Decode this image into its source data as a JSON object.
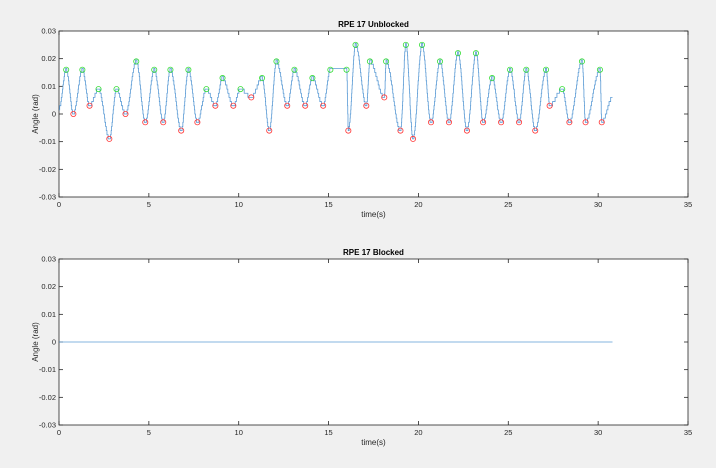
{
  "colors": {
    "line": "#5b9bd5",
    "peak_marker": "#33dd33",
    "trough_marker": "#ff3333",
    "axes": "#262626",
    "figure_bg": "#f0f0f0"
  },
  "chart_data": [
    {
      "type": "line",
      "title": "RPE 17 Unblocked",
      "xlabel": "time(s)",
      "ylabel": "Angle (rad)",
      "xlim": [
        0,
        35
      ],
      "ylim": [
        -0.03,
        0.03
      ],
      "xticks": [
        0,
        5,
        10,
        15,
        20,
        25,
        30,
        35
      ],
      "xtick_labels": [
        "0",
        "5",
        "10",
        "15",
        "20",
        "25",
        "30",
        "35"
      ],
      "yticks": [
        0.03,
        0.02,
        0.01,
        0,
        -0.01,
        -0.02,
        -0.03
      ],
      "ytick_labels": [
        "0.03",
        "0.02",
        "0.01",
        "0",
        "-0.01",
        "-0.02",
        "-0.03"
      ],
      "grid": false,
      "x_end": 30.8,
      "peaks": {
        "x": [
          0.4,
          1.3,
          2.2,
          3.2,
          4.3,
          5.3,
          6.2,
          7.2,
          8.2,
          9.1,
          10.1,
          11.3,
          12.1,
          13.1,
          14.1,
          15.1,
          16.0,
          16.5,
          17.3,
          18.2,
          19.3,
          20.2,
          21.2,
          22.2,
          23.2,
          24.1,
          25.1,
          26.0,
          27.1,
          28.0,
          29.1,
          30.1
        ],
        "y": [
          0.016,
          0.016,
          0.009,
          0.009,
          0.019,
          0.016,
          0.016,
          0.016,
          0.009,
          0.013,
          0.009,
          0.013,
          0.019,
          0.016,
          0.013,
          0.016,
          0.016,
          0.025,
          0.019,
          0.019,
          0.025,
          0.025,
          0.019,
          0.022,
          0.022,
          0.013,
          0.016,
          0.016,
          0.016,
          0.009,
          0.019,
          0.016
        ]
      },
      "troughs": {
        "x": [
          0.8,
          1.7,
          2.8,
          3.7,
          4.8,
          5.8,
          6.8,
          7.7,
          8.7,
          9.7,
          10.7,
          11.7,
          12.7,
          13.7,
          14.7,
          16.1,
          17.1,
          18.1,
          19.0,
          19.7,
          20.7,
          21.7,
          22.7,
          23.6,
          24.6,
          25.6,
          26.5,
          27.3,
          28.4,
          29.3,
          30.2
        ],
        "y": [
          0.0,
          0.003,
          -0.009,
          0.0,
          -0.003,
          -0.003,
          -0.006,
          -0.003,
          0.003,
          0.003,
          0.006,
          -0.006,
          0.003,
          0.003,
          0.003,
          -0.006,
          0.003,
          0.006,
          -0.006,
          -0.009,
          -0.003,
          -0.003,
          -0.006,
          -0.003,
          -0.003,
          -0.003,
          -0.006,
          0.003,
          -0.003,
          -0.003,
          -0.003
        ]
      },
      "final_value": 0.006
    },
    {
      "type": "line",
      "title": "RPE 17 Blocked",
      "xlabel": "time(s)",
      "ylabel": "Angle (rad)",
      "xlim": [
        0,
        35
      ],
      "ylim": [
        -0.03,
        0.03
      ],
      "xticks": [
        0,
        5,
        10,
        15,
        20,
        25,
        30,
        35
      ],
      "xtick_labels": [
        "0",
        "5",
        "10",
        "15",
        "20",
        "25",
        "30",
        "35"
      ],
      "yticks": [
        0.03,
        0.02,
        0.01,
        0,
        -0.01,
        -0.02,
        -0.03
      ],
      "ytick_labels": [
        "0.03",
        "0.02",
        "0.01",
        "0",
        "-0.01",
        "-0.02",
        "-0.03"
      ],
      "grid": false,
      "series": [
        {
          "x": [
            0,
            30.8
          ],
          "y": [
            0,
            0
          ]
        }
      ]
    }
  ]
}
